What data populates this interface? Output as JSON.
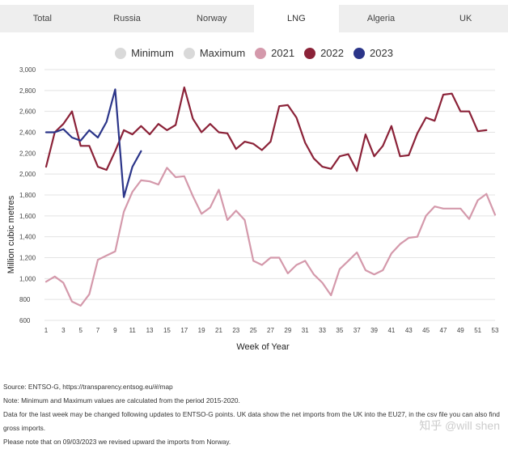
{
  "tabs": [
    {
      "label": "Total",
      "active": false
    },
    {
      "label": "Russia",
      "active": false
    },
    {
      "label": "Norway",
      "active": false
    },
    {
      "label": "LNG",
      "active": true
    },
    {
      "label": "Algeria",
      "active": false
    },
    {
      "label": "UK",
      "active": false
    }
  ],
  "legend": [
    {
      "label": "Minimum",
      "color": "#d9d9d9"
    },
    {
      "label": "Maximum",
      "color": "#d9d9d9"
    },
    {
      "label": "2021",
      "color": "#d499ab"
    },
    {
      "label": "2022",
      "color": "#8b2238"
    },
    {
      "label": "2023",
      "color": "#2b3589"
    }
  ],
  "chart_data": {
    "type": "line",
    "xlabel": "Week of Year",
    "ylabel": "Million cubic metres",
    "xlim": [
      1,
      53
    ],
    "ylim": [
      600,
      3000
    ],
    "x_ticks": [
      1,
      3,
      5,
      7,
      9,
      11,
      13,
      15,
      17,
      19,
      21,
      23,
      25,
      27,
      29,
      31,
      33,
      35,
      37,
      39,
      41,
      43,
      45,
      47,
      49,
      51,
      53
    ],
    "y_ticks": [
      600,
      800,
      1000,
      1200,
      1400,
      1600,
      1800,
      2000,
      2200,
      2400,
      2600,
      2800,
      3000
    ],
    "y_tick_labels": [
      "600",
      "800",
      "1,000",
      "1,200",
      "1,400",
      "1,600",
      "1,800",
      "2,000",
      "2,200",
      "2,400",
      "2,600",
      "2,800",
      "3,000"
    ],
    "grid": "horizontal",
    "legend_position": "top",
    "series": [
      {
        "name": "2021",
        "color": "#d499ab",
        "x": [
          1,
          2,
          3,
          4,
          5,
          6,
          7,
          8,
          9,
          10,
          11,
          12,
          13,
          14,
          15,
          16,
          17,
          18,
          19,
          20,
          21,
          22,
          23,
          24,
          25,
          26,
          27,
          28,
          29,
          30,
          31,
          32,
          33,
          34,
          35,
          36,
          37,
          38,
          39,
          40,
          41,
          42,
          43,
          44,
          45,
          46,
          47,
          48,
          49,
          50,
          51,
          52,
          53
        ],
        "values": [
          970,
          1020,
          960,
          780,
          740,
          850,
          1180,
          1220,
          1260,
          1640,
          1830,
          1940,
          1930,
          1900,
          2060,
          1970,
          1980,
          1790,
          1620,
          1680,
          1850,
          1560,
          1650,
          1560,
          1170,
          1130,
          1200,
          1200,
          1050,
          1130,
          1170,
          1040,
          960,
          840,
          1090,
          1170,
          1250,
          1080,
          1040,
          1080,
          1240,
          1330,
          1390,
          1400,
          1600,
          1690,
          1670,
          1670,
          1670,
          1570,
          1750,
          1810,
          1610
        ]
      },
      {
        "name": "2022",
        "color": "#8b2238",
        "x": [
          1,
          2,
          3,
          4,
          5,
          6,
          7,
          8,
          9,
          10,
          11,
          12,
          13,
          14,
          15,
          16,
          17,
          18,
          19,
          20,
          21,
          22,
          23,
          24,
          25,
          26,
          27,
          28,
          29,
          30,
          31,
          32,
          33,
          34,
          35,
          36,
          37,
          38,
          39,
          40,
          41,
          42,
          43,
          44,
          45,
          46,
          47,
          48,
          49,
          50,
          51,
          52
        ],
        "values": [
          2070,
          2400,
          2480,
          2600,
          2270,
          2270,
          2070,
          2040,
          2220,
          2420,
          2380,
          2460,
          2380,
          2480,
          2420,
          2470,
          2830,
          2530,
          2400,
          2480,
          2400,
          2390,
          2240,
          2310,
          2290,
          2230,
          2310,
          2650,
          2660,
          2540,
          2300,
          2150,
          2070,
          2050,
          2170,
          2190,
          2030,
          2380,
          2170,
          2270,
          2460,
          2170,
          2180,
          2390,
          2540,
          2510,
          2760,
          2770,
          2600,
          2600,
          2410,
          2420
        ]
      },
      {
        "name": "2023",
        "color": "#2b3589",
        "x": [
          1,
          2,
          3,
          4,
          5,
          6,
          7,
          8,
          9,
          10,
          11,
          12
        ],
        "values": [
          2400,
          2400,
          2430,
          2350,
          2320,
          2420,
          2350,
          2500,
          2810,
          1780,
          2070,
          2220
        ]
      }
    ]
  },
  "footnotes": [
    "Source: ENTSO-G,  https://transparency.entsog.eu/#/map",
    "Note: Minimum and Maximum values are calculated from the period 2015-2020.",
    "Data for the last week may be changed following updates to ENTSO-G points. UK data show the net imports from the UK into the EU27, in the csv file you can also find gross imports.",
    "Please note that on 09/03/2023 we revised upward the imports from Norway."
  ],
  "watermark": "知乎 @will shen"
}
